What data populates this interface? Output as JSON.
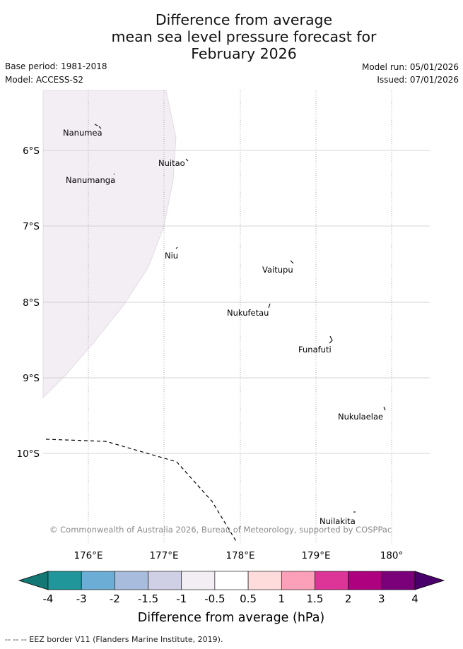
{
  "title": {
    "line1": "Difference from average",
    "line2": "mean sea level pressure forecast for",
    "line3": "February 2026"
  },
  "meta": {
    "base_period": "Base period: 1981-2018",
    "model": "Model: ACCESS-S2",
    "model_run": "Model run: 05/01/2026",
    "issued": "Issued: 07/01/2026"
  },
  "map": {
    "lat_labels": [
      "6°S",
      "7°S",
      "8°S",
      "9°S",
      "10°S"
    ],
    "lon_labels": [
      "176°E",
      "177°E",
      "178°E",
      "179°E",
      "180°"
    ],
    "places": [
      "Nanumea",
      "Nuitao",
      "Nanumanga",
      "Niu",
      "Vaitupu",
      "Nukufetau",
      "Funafuti",
      "Nukulaelae",
      "Nuilakita"
    ],
    "copyright": "© Commonwealth of Australia 2026, Bureau of Meteorology, supported by COSPPac",
    "anomaly_shading_category": "-0.5 to 0.5"
  },
  "colorbar": {
    "ticks": [
      "-4",
      "-3",
      "-2",
      "-1.5",
      "-1",
      "-0.5",
      "0.5",
      "1",
      "1.5",
      "2",
      "3",
      "4"
    ],
    "colors": [
      "#137873",
      "#20969a",
      "#6badd5",
      "#a8bddd",
      "#cfd0e5",
      "#f3edf4",
      "#ffffff",
      "#fedcdc",
      "#fba0b8",
      "#dd3597",
      "#ad0180",
      "#7a017a",
      "#4a006b"
    ],
    "label": "Difference from average (hPa)"
  },
  "footer": {
    "legend": "--  --  -- EEZ border V11 (Flanders Marine Institute, 2019)."
  }
}
